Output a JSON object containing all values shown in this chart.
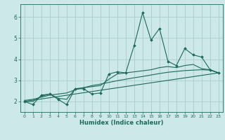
{
  "xlabel": "Humidex (Indice chaleur)",
  "background_color": "#cce8e8",
  "grid_color": "#aacccc",
  "line_color": "#1a6b5a",
  "xlim": [
    -0.5,
    23.5
  ],
  "ylim": [
    1.5,
    6.6
  ],
  "yticks": [
    2,
    3,
    4,
    5,
    6
  ],
  "xticks": [
    0,
    1,
    2,
    3,
    4,
    5,
    6,
    7,
    8,
    9,
    10,
    11,
    12,
    13,
    14,
    15,
    16,
    17,
    18,
    19,
    20,
    21,
    22,
    23
  ],
  "line1_x": [
    0,
    1,
    2,
    3,
    4,
    5,
    6,
    7,
    8,
    9,
    10,
    11,
    12,
    13,
    14,
    15,
    16,
    17,
    18,
    19,
    20,
    21,
    22,
    23
  ],
  "line1_y": [
    2.0,
    1.85,
    2.3,
    2.35,
    2.1,
    1.85,
    2.6,
    2.6,
    2.35,
    2.4,
    3.3,
    3.4,
    3.35,
    4.65,
    6.2,
    4.9,
    5.45,
    3.9,
    3.7,
    4.5,
    4.2,
    4.1,
    3.5,
    3.35
  ],
  "line2_x": [
    0,
    23
  ],
  "line2_y": [
    2.0,
    3.35
  ],
  "line3_x": [
    0,
    1,
    2,
    3,
    4,
    5,
    6,
    7,
    8,
    9,
    10,
    11,
    12,
    13,
    14,
    15,
    16,
    17,
    18,
    19,
    20,
    21,
    22,
    23
  ],
  "line3_y": [
    2.05,
    2.1,
    2.2,
    2.3,
    2.35,
    2.4,
    2.55,
    2.65,
    2.75,
    2.82,
    2.9,
    2.98,
    3.05,
    3.12,
    3.18,
    3.25,
    3.32,
    3.38,
    3.42,
    3.46,
    3.48,
    3.5,
    3.48,
    3.35
  ],
  "line4_x": [
    0,
    1,
    2,
    3,
    4,
    5,
    6,
    7,
    8,
    9,
    10,
    11,
    12,
    13,
    14,
    15,
    16,
    17,
    18,
    19,
    20,
    21,
    22,
    23
  ],
  "line4_y": [
    2.0,
    2.0,
    2.25,
    2.35,
    2.15,
    2.1,
    2.6,
    2.65,
    2.7,
    2.75,
    3.05,
    3.3,
    3.35,
    3.4,
    3.45,
    3.5,
    3.6,
    3.65,
    3.6,
    3.7,
    3.75,
    3.55,
    3.5,
    3.35
  ]
}
